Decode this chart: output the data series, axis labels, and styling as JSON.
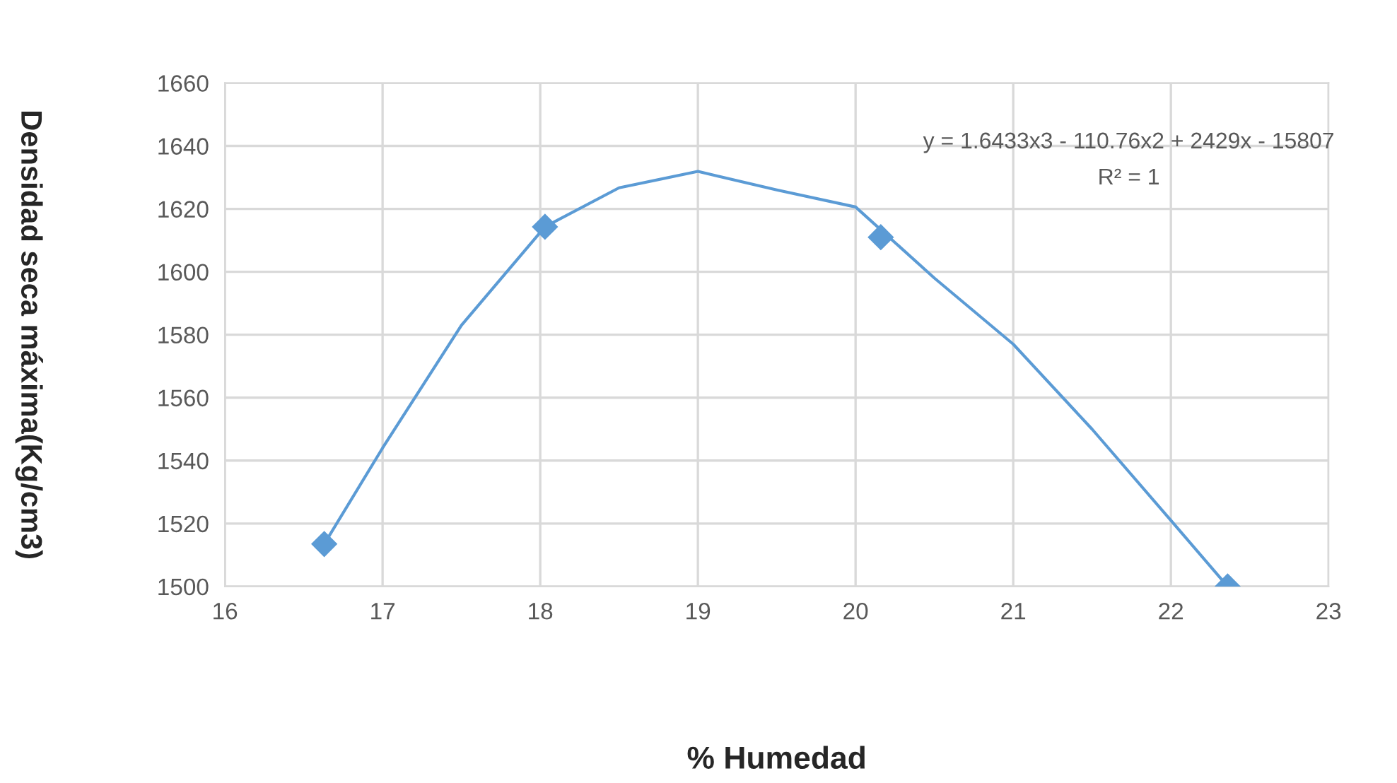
{
  "chart_data": {
    "type": "scatter",
    "xlabel": "% Humedad",
    "ylabel": "Densidad seca máxima(Kg/cm3)",
    "series": [
      {
        "type": "line",
        "color": "#5b9bd5",
        "marker": "none",
        "x": [
          16.63,
          17,
          17.5,
          18.03,
          18.5,
          19,
          19.5,
          20,
          20.5,
          21,
          21.5,
          22,
          22.36
        ],
        "values": [
          1513.5,
          1544,
          1583,
          1614.3,
          1626.7,
          1631.9,
          1626,
          1620.6,
          1598,
          1577,
          1550,
          1521,
          1500
        ]
      },
      {
        "color": "#5b9bd5",
        "marker": "diamond",
        "x": [
          16.63,
          18.03,
          20.16,
          22.36
        ],
        "values": [
          1513.5,
          1614.3,
          1611,
          1500
        ]
      }
    ],
    "annotations": [
      "y = 1.6433x3 - 110.76x2 + 2429x - 15807",
      "R² = 1"
    ],
    "xlim": [
      16,
      23
    ],
    "xticks": [
      16,
      17,
      18,
      19,
      20,
      21,
      22,
      23
    ],
    "ylim": [
      1500,
      1660
    ],
    "yticks": [
      1500,
      1520,
      1540,
      1560,
      1580,
      1600,
      1620,
      1640,
      1660
    ],
    "grid": true
  }
}
